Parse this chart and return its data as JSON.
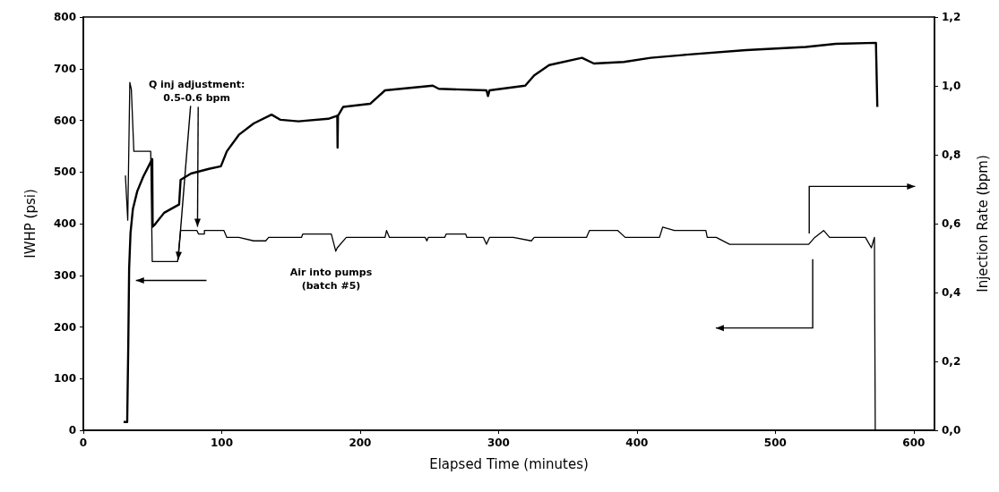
{
  "chart_data": {
    "type": "line",
    "xlabel": "Elapsed Time (minutes)",
    "ylabel": "IWHP (psi)",
    "y2label": "Injection Rate (bpm)",
    "annotations": [
      {
        "text": "Q inj adjustment:\n0.5-0.6 bpm",
        "x": 68.5,
        "y": 330
      },
      "Air into pumps\n(batch #5)"
    ],
    "xlim": [
      0,
      615
    ],
    "xticks": [
      0,
      100,
      200,
      300,
      400,
      500,
      600
    ],
    "ylim": [
      0,
      800
    ],
    "yticks": [
      0,
      100,
      200,
      300,
      400,
      500,
      600,
      700,
      800
    ],
    "y2lim": [
      0,
      1.2
    ],
    "y2ticks": [
      {
        "value": 0,
        "label": "0,0"
      },
      {
        "value": 0.2,
        "label": "0,2"
      },
      {
        "value": 0.4,
        "label": "0,4"
      },
      {
        "value": 0.6,
        "label": "0,6"
      },
      {
        "value": 0.8,
        "label": "0,8"
      },
      {
        "value": 1.0,
        "label": "1,0"
      },
      {
        "value": 1.2,
        "label": "1,2"
      }
    ],
    "marker": "none",
    "line_style": "solid",
    "series": [
      {
        "color": "#000000",
        "x": [
          29.1,
          31.7,
          32.5,
          33.1,
          34.1,
          35.8,
          39.0,
          43.3,
          47.7,
          49.8,
          50.1,
          51.9,
          58.4,
          67.1,
          69.2,
          70.3,
          77.8,
          90.8,
          99.4,
          103.7,
          112.4,
          123.1,
          136.0,
          142.5,
          155.4,
          177.0,
          183.5,
          183.7,
          184.0,
          187.8,
          207.2,
          218.0,
          252.5,
          256.8,
          291.3,
          292.4,
          293.5,
          319.3,
          325.8,
          336.6,
          360.3,
          368.9,
          390.5,
          410.0,
          435.8,
          478.9,
          522.0,
          543.6,
          572.7,
          573.7
        ],
        "values": [
          16,
          16,
          169,
          313,
          382,
          428,
          463,
          491,
          514,
          525,
          394,
          399,
          421,
          434,
          437,
          485,
          497,
          506,
          511,
          540,
          572,
          594,
          611,
          601,
          598,
          603,
          609,
          547,
          609,
          626,
          632,
          658,
          667,
          661,
          658,
          647,
          658,
          667,
          687,
          707,
          721,
          710,
          713,
          721,
          727,
          736,
          742,
          748,
          750,
          626
        ]
      },
      {
        "color": "#000000",
        "axis": "y2",
        "x": [
          30.4,
          32.1,
          33.6,
          34.7,
          36.5,
          48.7,
          49.8,
          68.1,
          70.3,
          82.1,
          83.2,
          87.5,
          87.5,
          101.6,
          103.7,
          112.4,
          123.1,
          131.8,
          133.9,
          157.6,
          158.6,
          179.2,
          182.4,
          183.5,
          190.0,
          218.0,
          219.1,
          221.2,
          247.1,
          248.2,
          249.2,
          261.1,
          262.2,
          276.2,
          277.2,
          289.1,
          291.3,
          293.5,
          310.7,
          323.7,
          325.8,
          363.5,
          365.7,
          386.2,
          391.5,
          412.0,
          416.3,
          418.6,
          427.1,
          449.8,
          450.8,
          457.3,
          467.0,
          524.1,
          528.5,
          534.9,
          539.2,
          565.1,
          569.4,
          571.6,
          572.2
        ],
        "values": [
          0.74,
          0.61,
          1.01,
          0.99,
          0.81,
          0.81,
          0.49,
          0.49,
          0.58,
          0.58,
          0.57,
          0.57,
          0.58,
          0.58,
          0.56,
          0.56,
          0.55,
          0.55,
          0.56,
          0.56,
          0.57,
          0.57,
          0.52,
          0.53,
          0.56,
          0.56,
          0.58,
          0.56,
          0.56,
          0.55,
          0.56,
          0.56,
          0.57,
          0.57,
          0.56,
          0.56,
          0.54,
          0.56,
          0.56,
          0.55,
          0.56,
          0.56,
          0.58,
          0.58,
          0.56,
          0.56,
          0.56,
          0.59,
          0.58,
          0.58,
          0.56,
          0.56,
          0.54,
          0.54,
          0.56,
          0.58,
          0.56,
          0.56,
          0.53,
          0.56,
          0.0
        ]
      }
    ]
  }
}
